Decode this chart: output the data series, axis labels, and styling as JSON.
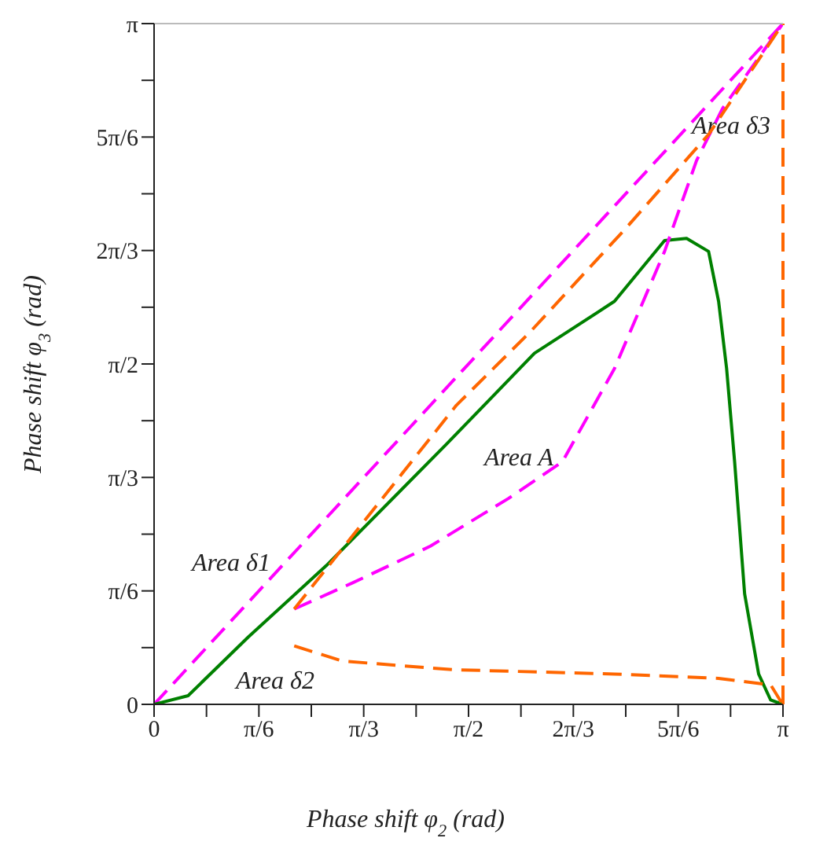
{
  "chart_data": {
    "type": "line",
    "xlabel": "Phase shift φ$_{2}$ (rad)",
    "ylabel": "Phase shift φ$_{3}$ (rad)",
    "xlim": [
      0,
      3.1416
    ],
    "ylim": [
      0,
      3.1416
    ],
    "xticks": [
      {
        "value": 0,
        "label": "0"
      },
      {
        "value": 0.2618,
        "label": null
      },
      {
        "value": 0.5236,
        "label": "π/6"
      },
      {
        "value": 0.7854,
        "label": null
      },
      {
        "value": 1.0472,
        "label": "π/3"
      },
      {
        "value": 1.309,
        "label": null
      },
      {
        "value": 1.5708,
        "label": "π/2"
      },
      {
        "value": 1.8326,
        "label": null
      },
      {
        "value": 2.0944,
        "label": "2π/3"
      },
      {
        "value": 2.3562,
        "label": null
      },
      {
        "value": 2.618,
        "label": "5π/6"
      },
      {
        "value": 2.8798,
        "label": null
      },
      {
        "value": 3.1416,
        "label": "π"
      }
    ],
    "yticks": [
      {
        "value": 0,
        "label": "0"
      },
      {
        "value": 0.2618,
        "label": null
      },
      {
        "value": 0.5236,
        "label": "π/6"
      },
      {
        "value": 0.7854,
        "label": null
      },
      {
        "value": 1.0472,
        "label": "π/3"
      },
      {
        "value": 1.309,
        "label": null
      },
      {
        "value": 1.5708,
        "label": "π/2"
      },
      {
        "value": 1.8326,
        "label": null
      },
      {
        "value": 2.0944,
        "label": "2π/3"
      },
      {
        "value": 2.3562,
        "label": null
      },
      {
        "value": 2.618,
        "label": "5π/6"
      },
      {
        "value": 2.8798,
        "label": null
      },
      {
        "value": 3.1416,
        "label": "π"
      }
    ],
    "grid": false,
    "legend": false,
    "marker": "none",
    "series": [
      {
        "color": "#ff00ff",
        "line_style": "dashed",
        "x": [
          0,
          3.14
        ],
        "values": [
          0,
          3.14
        ]
      },
      {
        "color": "#008000",
        "line_style": "solid",
        "x": [
          0,
          0.17,
          0.47,
          0.86,
          1.46,
          1.9,
          2.3,
          2.55,
          2.66,
          2.77,
          2.82,
          2.86,
          2.9,
          2.95,
          3.02,
          3.08,
          3.14
        ],
        "values": [
          0,
          0.04,
          0.31,
          0.64,
          1.2,
          1.62,
          1.86,
          2.14,
          2.15,
          2.09,
          1.86,
          1.55,
          1.12,
          0.51,
          0.14,
          0.02,
          0
        ]
      },
      {
        "color": "#ff00ff",
        "line_style": "dashed",
        "x": [
          0.7,
          0.99,
          1.38,
          1.77,
          2.04,
          2.3,
          2.55,
          2.71,
          2.84,
          3.14
        ],
        "values": [
          0.44,
          0.56,
          0.73,
          0.95,
          1.12,
          1.55,
          2.09,
          2.51,
          2.75,
          3.14
        ]
      },
      {
        "color": "#ff6600",
        "line_style": "dashed",
        "x": [
          0.7,
          1.14,
          1.51,
          1.88,
          2.35,
          2.77,
          3.14
        ],
        "values": [
          0.44,
          0.95,
          1.38,
          1.72,
          2.19,
          2.63,
          3.14
        ]
      },
      {
        "color": "#ff6600",
        "line_style": "dashed",
        "x": [
          0.7,
          0.94,
          1.49,
          2.3,
          2.82,
          3.08,
          3.14
        ],
        "values": [
          0.27,
          0.2,
          0.16,
          0.14,
          0.12,
          0.09,
          0
        ]
      }
    ],
    "ref_lines": [
      {
        "axis": "x",
        "value": 3.1416,
        "label": null,
        "color": "#ff6600",
        "line_style": "dashed"
      }
    ],
    "annotations": [
      "Area A",
      "Area δ1",
      "Area δ2",
      "Area δ3"
    ]
  }
}
